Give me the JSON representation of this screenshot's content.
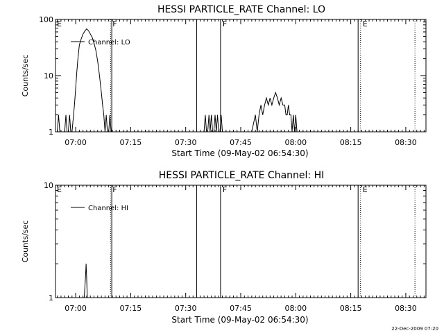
{
  "chart_data": [
    {
      "type": "line",
      "title": "HESSI PARTICLE_RATE Channel: LO",
      "xlabel": "Start Time (09-May-02 06:54:30)",
      "ylabel": "Counts/sec",
      "y_scale": "log",
      "ylim": [
        1,
        100
      ],
      "xlim": [
        "06:54:30",
        "08:35:30"
      ],
      "x_ticks": [
        "07:00",
        "07:15",
        "07:30",
        "07:45",
        "08:00",
        "08:15",
        "08:30"
      ],
      "y_ticks": [
        "1",
        "10",
        "100"
      ],
      "legend": {
        "entries": [
          "Channel: LO"
        ],
        "placement": "top-left"
      },
      "grid": false,
      "vertical_markers": [
        {
          "time": "07:09:30",
          "label": "F",
          "style": "dotted"
        },
        {
          "time": "07:09:50",
          "label": "",
          "style": "solid"
        },
        {
          "time": "07:33:00",
          "label": "",
          "style": "solid"
        },
        {
          "time": "07:39:30",
          "label": "F",
          "style": "solid"
        },
        {
          "time": "08:17:00",
          "label": "",
          "style": "solid"
        },
        {
          "time": "08:17:40",
          "label": "E",
          "style": "dotted"
        },
        {
          "time": "08:32:30",
          "label": "",
          "style": "dotted"
        }
      ],
      "edge_label_left": "E",
      "series": [
        {
          "name": "Channel: LO",
          "x": [
            "06:55:00",
            "06:55:20",
            "06:55:40",
            "06:56:00",
            "06:57:00",
            "06:57:20",
            "06:57:40",
            "06:58:00",
            "06:58:20",
            "06:58:40",
            "06:59:00",
            "06:59:40",
            "07:00:00",
            "07:00:20",
            "07:00:40",
            "07:01:00",
            "07:01:30",
            "07:02:00",
            "07:02:30",
            "07:03:00",
            "07:03:30",
            "07:04:00",
            "07:04:30",
            "07:05:00",
            "07:05:30",
            "07:06:00",
            "07:06:30",
            "07:07:00",
            "07:07:20",
            "07:07:40",
            "07:08:00",
            "07:08:20",
            "07:08:40",
            "07:09:00",
            "07:09:20",
            "07:09:40",
            "07:10:00",
            "07:35:00",
            "07:35:20",
            "07:35:40",
            "07:36:00",
            "07:36:20",
            "07:36:40",
            "07:37:00",
            "07:37:20",
            "07:37:40",
            "07:38:00",
            "07:38:20",
            "07:38:40",
            "07:39:00",
            "07:39:20",
            "07:39:40",
            "07:40:00",
            "07:46:00",
            "07:48:00",
            "07:49:00",
            "07:49:30",
            "07:50:00",
            "07:50:30",
            "07:51:00",
            "07:51:30",
            "07:52:00",
            "07:52:30",
            "07:53:00",
            "07:53:30",
            "07:54:00",
            "07:54:30",
            "07:55:00",
            "07:55:30",
            "07:56:00",
            "07:56:30",
            "07:57:00",
            "07:57:20",
            "07:57:40",
            "07:58:00",
            "07:58:20",
            "07:58:40",
            "07:59:00",
            "07:59:20",
            "07:59:40",
            "08:00:00",
            "08:00:20",
            "08:00:40",
            "08:01:00"
          ],
          "values": [
            1,
            2,
            1,
            1,
            1,
            2,
            1,
            1,
            2,
            1,
            1,
            3,
            6,
            12,
            22,
            35,
            45,
            55,
            62,
            68,
            63,
            55,
            48,
            38,
            28,
            18,
            10,
            5,
            3,
            2,
            1,
            2,
            1,
            1,
            2,
            1,
            1,
            1,
            2,
            1,
            1,
            2,
            1,
            2,
            1,
            1,
            2,
            1,
            2,
            1,
            1,
            2,
            1,
            1,
            1,
            2,
            1,
            2,
            3,
            2,
            3,
            4,
            3,
            4,
            3,
            4,
            5,
            4,
            3,
            4,
            3,
            3,
            2,
            2,
            3,
            2,
            2,
            1,
            2,
            1,
            2,
            1,
            1,
            1
          ]
        }
      ]
    },
    {
      "type": "line",
      "title": "HESSI PARTICLE_RATE Channel: HI",
      "xlabel": "Start Time (09-May-02 06:54:30)",
      "ylabel": "Counts/sec",
      "y_scale": "log",
      "ylim": [
        1,
        10
      ],
      "xlim": [
        "06:54:30",
        "08:35:30"
      ],
      "x_ticks": [
        "07:00",
        "07:15",
        "07:30",
        "07:45",
        "08:00",
        "08:15",
        "08:30"
      ],
      "y_ticks": [
        "1",
        "10"
      ],
      "legend": {
        "entries": [
          "Channel: HI"
        ],
        "placement": "top-left"
      },
      "grid": false,
      "vertical_markers": [
        {
          "time": "07:09:30",
          "label": "F",
          "style": "dotted"
        },
        {
          "time": "07:09:50",
          "label": "",
          "style": "solid"
        },
        {
          "time": "07:33:00",
          "label": "",
          "style": "solid"
        },
        {
          "time": "07:39:30",
          "label": "F",
          "style": "solid"
        },
        {
          "time": "08:17:00",
          "label": "",
          "style": "solid"
        },
        {
          "time": "08:17:40",
          "label": "E",
          "style": "dotted"
        },
        {
          "time": "08:32:30",
          "label": "",
          "style": "dotted"
        }
      ],
      "edge_label_left": "E",
      "series": [
        {
          "name": "Channel: HI",
          "x": [
            "07:02:20",
            "07:02:40",
            "07:02:50",
            "07:03:00",
            "07:03:10",
            "07:03:20"
          ],
          "values": [
            1,
            1.5,
            2,
            1.5,
            1,
            1
          ]
        }
      ]
    }
  ],
  "footer": {
    "timestamp": "22-Dec-2009 07:20"
  }
}
